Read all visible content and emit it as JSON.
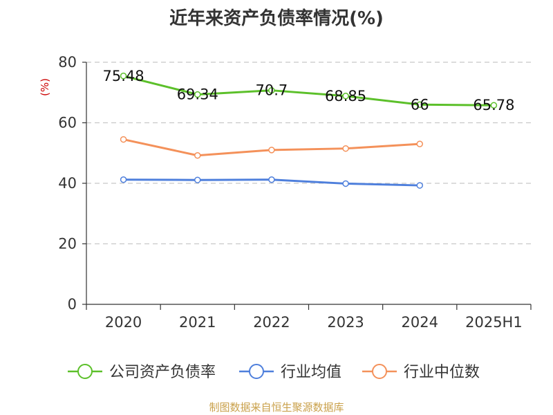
{
  "chart_data": {
    "type": "line",
    "title": "近年来资产负债率情况(%)",
    "ylabel": "(%)",
    "categories": [
      "2020",
      "2021",
      "2022",
      "2023",
      "2024",
      "2025H1"
    ],
    "ylim": [
      0,
      80
    ],
    "yticks": [
      0,
      20,
      40,
      60,
      80
    ],
    "grid": true,
    "legend_position": "bottom",
    "series": [
      {
        "name": "公司资产负债率",
        "color": "#5cc02a",
        "values": [
          75.48,
          69.34,
          70.7,
          68.85,
          66,
          65.78
        ],
        "labels": [
          "75.48",
          "69.34",
          "70.7",
          "68.85",
          "66",
          "65.78"
        ]
      },
      {
        "name": "行业均值",
        "color": "#4e7fdc",
        "values": [
          41.2,
          41.1,
          41.2,
          39.9,
          39.3,
          null
        ],
        "labels": []
      },
      {
        "name": "行业中位数",
        "color": "#f4915a",
        "values": [
          54.5,
          49.2,
          51.0,
          51.5,
          53.0,
          null
        ],
        "labels": []
      }
    ]
  },
  "source_note": "制图数据来自恒生聚源数据库"
}
